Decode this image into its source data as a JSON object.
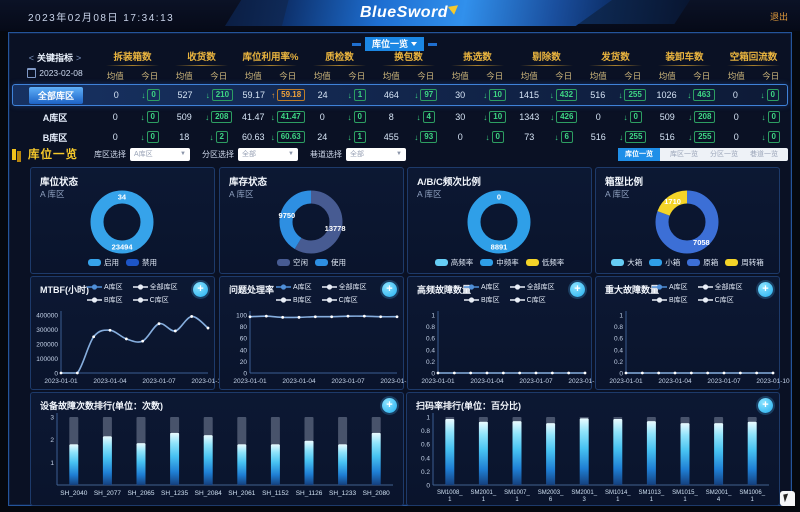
{
  "header": {
    "datetime": "2023年02月08日 17:34:13",
    "logo": "BlueSword",
    "logout": "退出",
    "tab": "库位一览"
  },
  "kpi_table": {
    "nav_label": "关键指标",
    "date": "2023-02-08",
    "sub_avg": "均值",
    "sub_today": "今日",
    "metrics": [
      "拆装箱数",
      "收货数",
      "库位利用率%",
      "质检数",
      "换包数",
      "拣选数",
      "剔除数",
      "发货数",
      "装卸车数",
      "空箱回流数"
    ],
    "rows": [
      {
        "label": "全部库区",
        "selected": true,
        "values": [
          [
            "0",
            "0",
            "down",
            "green"
          ],
          [
            "527",
            "210",
            "down",
            "green"
          ],
          [
            "59.17",
            "59.18",
            "up",
            "orange"
          ],
          [
            "24",
            "1",
            "down",
            "green"
          ],
          [
            "464",
            "97",
            "down",
            "green"
          ],
          [
            "30",
            "10",
            "down",
            "green"
          ],
          [
            "1415",
            "432",
            "down",
            "green"
          ],
          [
            "516",
            "255",
            "down",
            "green"
          ],
          [
            "1026",
            "463",
            "down",
            "green"
          ],
          [
            "0",
            "0",
            "down",
            "green"
          ]
        ]
      },
      {
        "label": "A库区",
        "selected": false,
        "values": [
          [
            "0",
            "0",
            "down",
            "green"
          ],
          [
            "509",
            "208",
            "down",
            "green"
          ],
          [
            "41.47",
            "41.47",
            "down",
            "green"
          ],
          [
            "0",
            "0",
            "down",
            "green"
          ],
          [
            "8",
            "4",
            "down",
            "green"
          ],
          [
            "30",
            "10",
            "down",
            "green"
          ],
          [
            "1343",
            "426",
            "down",
            "green"
          ],
          [
            "0",
            "0",
            "down",
            "green"
          ],
          [
            "509",
            "208",
            "down",
            "green"
          ],
          [
            "0",
            "0",
            "down",
            "green"
          ]
        ]
      },
      {
        "label": "B库区",
        "selected": false,
        "values": [
          [
            "0",
            "0",
            "down",
            "green"
          ],
          [
            "18",
            "2",
            "down",
            "green"
          ],
          [
            "60.63",
            "60.63",
            "down",
            "green"
          ],
          [
            "24",
            "1",
            "down",
            "green"
          ],
          [
            "455",
            "93",
            "down",
            "green"
          ],
          [
            "0",
            "0",
            "down",
            "green"
          ],
          [
            "73",
            "6",
            "down",
            "green"
          ],
          [
            "516",
            "255",
            "down",
            "green"
          ],
          [
            "516",
            "255",
            "down",
            "green"
          ],
          [
            "0",
            "0",
            "down",
            "green"
          ]
        ]
      }
    ]
  },
  "filters": {
    "title": "库位一览",
    "items": [
      {
        "label": "库区选择",
        "value": "A库区"
      },
      {
        "label": "分区选择",
        "value": "全部"
      },
      {
        "label": "巷道选择",
        "value": "全部"
      }
    ],
    "switcher": {
      "active": "库位一览",
      "options": [
        "库区一览",
        "分区一览",
        "巷道一览"
      ]
    }
  },
  "colors": {
    "accent_gold": "#e9b43f",
    "green": "#3ed684",
    "orange": "#f0a23a",
    "line": "#86aede",
    "bright_blue": "#36a3ea",
    "dark_blue": "#1d55c6",
    "slate": "#475b92",
    "yellow": "#f4d428",
    "mid_blue": "#2f9fe8",
    "box_blue": "#3c6fd6"
  },
  "chart_data": {
    "donuts": [
      {
        "type": "pie",
        "title": "库位状态",
        "subtitle": "A 库区",
        "slices": [
          {
            "name": "启用",
            "value": 23494,
            "color": "#36a3ea"
          },
          {
            "name": "禁用",
            "value": 34,
            "color": "#1d55c6"
          }
        ]
      },
      {
        "type": "pie",
        "title": "库存状态",
        "subtitle": "A 库区",
        "slices": [
          {
            "name": "空闲",
            "value": 13778,
            "color": "#475b92"
          },
          {
            "name": "使用",
            "value": 9750,
            "color": "#2e8fe2"
          }
        ]
      },
      {
        "type": "pie",
        "title": "A/B/C频次比例",
        "subtitle": "A 库区",
        "slices": [
          {
            "name": "高频率",
            "value": 0,
            "color": "#66cdf5"
          },
          {
            "name": "中频率",
            "value": 8891,
            "color": "#2f9fe8"
          },
          {
            "name": "低频率",
            "value": 0,
            "color": "#f4d428"
          }
        ]
      },
      {
        "type": "pie",
        "title": "箱型比例",
        "subtitle": "A 库区",
        "slices": [
          {
            "name": "大箱",
            "value": 0,
            "color": "#66cdf5"
          },
          {
            "name": "小箱",
            "value": 0,
            "color": "#2f9fe8"
          },
          {
            "name": "原箱",
            "value": 7058,
            "color": "#3c6fd6"
          },
          {
            "name": "周转箱",
            "value": 1710,
            "color": "#f4d428"
          }
        ]
      }
    ],
    "line_x": [
      "2023-01-01",
      "2023-01-04",
      "2023-01-07",
      "2023-01-10"
    ],
    "line_legend": [
      "A库区",
      "全部库区",
      "B库区",
      "C库区"
    ],
    "lines": [
      {
        "type": "line",
        "title": "MTBF(小时)",
        "ylim": [
          0,
          400000
        ],
        "yticks": [
          0,
          100000,
          200000,
          300000,
          400000
        ],
        "values": [
          0,
          0,
          250000,
          295000,
          235000,
          220000,
          340000,
          290000,
          390000,
          310000
        ]
      },
      {
        "type": "line",
        "title": "问题处理率",
        "ylim": [
          0,
          100
        ],
        "yticks": [
          0,
          20,
          40,
          60,
          80,
          100
        ],
        "values": [
          97,
          98,
          96,
          96,
          97,
          97,
          98,
          98,
          97,
          97
        ]
      },
      {
        "type": "line",
        "title": "高频故障数量",
        "ylim": [
          0,
          1
        ],
        "yticks": [
          0,
          0.2,
          0.4,
          0.6,
          0.8,
          1
        ],
        "values": [
          0,
          0,
          0,
          0,
          0,
          0,
          0,
          0,
          0,
          0
        ]
      },
      {
        "type": "line",
        "title": "重大故障数量",
        "ylim": [
          0,
          1
        ],
        "yticks": [
          0,
          0.2,
          0.4,
          0.6,
          0.8,
          1
        ],
        "values": [
          0,
          0,
          0,
          0,
          0,
          0,
          0,
          0,
          0,
          0
        ]
      }
    ],
    "bars": [
      {
        "type": "bar",
        "title": "设备故障次数排行(单位：次数)",
        "ylim": [
          0,
          3
        ],
        "yticks": [
          1,
          2,
          3
        ],
        "categories": [
          "SH_2040",
          "SH_2077",
          "SH_2065",
          "SH_1235",
          "SH_2084",
          "SH_2061",
          "SH_1152",
          "SH_1126",
          "SH_1233",
          "SH_2080"
        ],
        "values": [
          1.8,
          2.15,
          1.85,
          2.3,
          2.2,
          1.8,
          1.8,
          1.95,
          1.8,
          2.3
        ],
        "two_line_labels": false
      },
      {
        "type": "bar",
        "title": "扫码率排行(单位：百分比)",
        "ylim": [
          0,
          1
        ],
        "yticks": [
          0,
          0.2,
          0.4,
          0.6,
          0.8,
          1
        ],
        "categories": [
          "SM1008_1",
          "SM2001_1",
          "SM1007_1",
          "SM2003_6",
          "SM2001_3",
          "SM1014_1",
          "SM1013_1",
          "SM1015_1",
          "SM2001_4",
          "SM1006_1"
        ],
        "values": [
          0.97,
          0.93,
          0.94,
          0.91,
          0.98,
          0.97,
          0.94,
          0.91,
          0.91,
          0.93
        ],
        "two_line_labels": true
      }
    ]
  }
}
